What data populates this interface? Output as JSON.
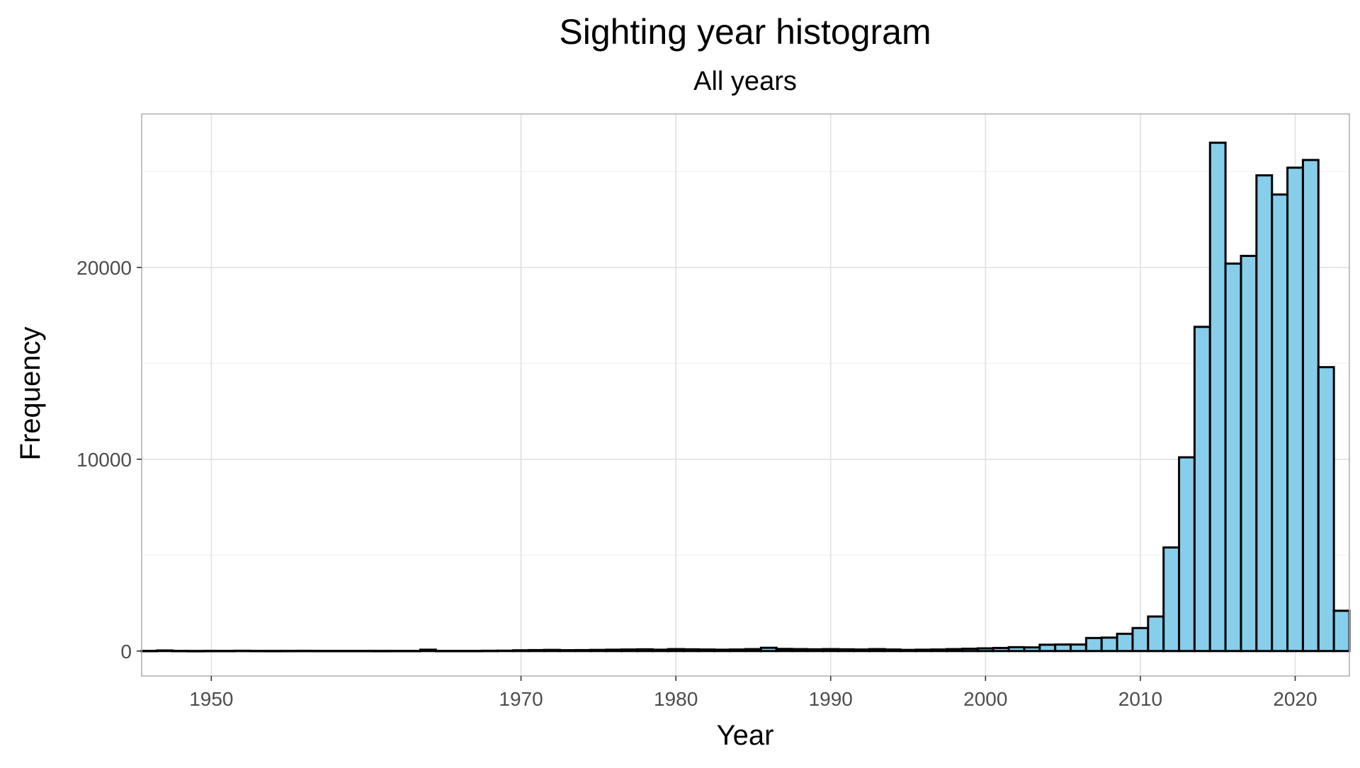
{
  "chart_data": {
    "type": "bar",
    "title": "Sighting year histogram",
    "subtitle": "All years",
    "xlabel": "Year",
    "ylabel": "Frequency",
    "xlim": [
      1945.5,
      2023.5
    ],
    "ylim": [
      -1300,
      28000
    ],
    "x_ticks": [
      1950,
      1970,
      1980,
      1990,
      2000,
      2010,
      2020
    ],
    "y_ticks": [
      0,
      10000,
      20000
    ],
    "grid": true,
    "bar_color": "#87ceeb",
    "bar_outline": "#000000",
    "x": [
      1946,
      1947,
      1948,
      1949,
      1950,
      1951,
      1952,
      1953,
      1954,
      1955,
      1956,
      1957,
      1958,
      1959,
      1960,
      1961,
      1962,
      1963,
      1964,
      1965,
      1966,
      1967,
      1968,
      1969,
      1970,
      1971,
      1972,
      1973,
      1974,
      1975,
      1976,
      1977,
      1978,
      1979,
      1980,
      1981,
      1982,
      1983,
      1984,
      1985,
      1986,
      1987,
      1988,
      1989,
      1990,
      1991,
      1992,
      1993,
      1994,
      1995,
      1996,
      1997,
      1998,
      1999,
      2000,
      2001,
      2002,
      2003,
      2004,
      2005,
      2006,
      2007,
      2008,
      2009,
      2010,
      2011,
      2012,
      2013,
      2014,
      2015,
      2016,
      2017,
      2018,
      2019,
      2020,
      2021,
      2022,
      2023
    ],
    "values": [
      10,
      30,
      10,
      5,
      10,
      10,
      15,
      10,
      8,
      10,
      12,
      10,
      10,
      10,
      10,
      8,
      10,
      10,
      70,
      10,
      10,
      10,
      15,
      20,
      40,
      50,
      60,
      45,
      50,
      60,
      70,
      80,
      90,
      70,
      100,
      90,
      80,
      70,
      80,
      100,
      170,
      110,
      100,
      90,
      100,
      90,
      80,
      100,
      80,
      60,
      70,
      80,
      100,
      120,
      140,
      160,
      200,
      190,
      330,
      340,
      340,
      680,
      700,
      900,
      1200,
      1800,
      5400,
      10100,
      16900,
      26500,
      20200,
      20600,
      24800,
      23800,
      25200,
      25600,
      14800,
      2100
    ]
  }
}
